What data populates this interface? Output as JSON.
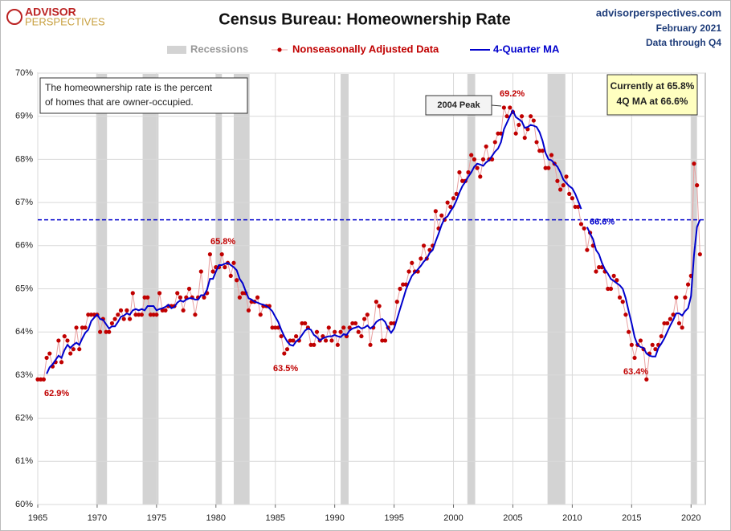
{
  "chart_data": {
    "type": "line",
    "title": "Census Bureau: Homeownership Rate",
    "logo": [
      "ADVISOR",
      "PERSPECTIVES"
    ],
    "header_right": [
      "advisorperspectives.com",
      "February 2021",
      "Data through Q4"
    ],
    "note": [
      "The homeownership rate is the percent",
      "of homes that are owner-occupied."
    ],
    "current_box": [
      "Currently at 65.8%",
      "4Q MA at 66.6%"
    ],
    "peak_label": "2004 Peak",
    "annotations": [
      "62.9%",
      "65.8%",
      "63.5%",
      "69.2%",
      "63.4%"
    ],
    "reference_line": {
      "value": 66.6,
      "label": "66.6%",
      "color": "#0000cc"
    },
    "recessions": {
      "name": "Recessions",
      "color": "#d3d3d3",
      "periods": [
        [
          1969.92,
          1970.83
        ],
        [
          1973.83,
          1975.17
        ],
        [
          1980.0,
          1980.5
        ],
        [
          1981.5,
          1982.83
        ],
        [
          1990.5,
          1991.17
        ],
        [
          2001.17,
          2001.83
        ],
        [
          2007.92,
          2009.42
        ],
        [
          2020.0,
          2020.5
        ]
      ]
    },
    "xlim": [
      1965,
      2021.2
    ],
    "xticks": [
      1965,
      1970,
      1975,
      1980,
      1985,
      1990,
      1995,
      2000,
      2005,
      2010,
      2015,
      2020
    ],
    "ylim": [
      60,
      70
    ],
    "yticks": [
      {
        "value": 60,
        "label": "60%"
      },
      {
        "value": 61,
        "label": "61%"
      },
      {
        "value": 62,
        "label": "62%"
      },
      {
        "value": 63,
        "label": "63%"
      },
      {
        "value": 64,
        "label": "64%"
      },
      {
        "value": 65,
        "label": "65%"
      },
      {
        "value": 66,
        "label": "66%"
      },
      {
        "value": 67,
        "label": "67%"
      },
      {
        "value": 68,
        "label": "68%"
      },
      {
        "value": 69,
        "label": "69%"
      },
      {
        "value": 70,
        "label": "70%"
      }
    ],
    "grid": true,
    "x": [
      1965,
      1965.25,
      1965.5,
      1965.75,
      1966,
      1966.25,
      1966.5,
      1966.75,
      1967,
      1967.25,
      1967.5,
      1967.75,
      1968,
      1968.25,
      1968.5,
      1968.75,
      1969,
      1969.25,
      1969.5,
      1969.75,
      1970,
      1970.25,
      1970.5,
      1970.75,
      1971,
      1971.25,
      1971.5,
      1971.75,
      1972,
      1972.25,
      1972.5,
      1972.75,
      1973,
      1973.25,
      1973.5,
      1973.75,
      1974,
      1974.25,
      1974.5,
      1974.75,
      1975,
      1975.25,
      1975.5,
      1975.75,
      1976,
      1976.25,
      1976.5,
      1976.75,
      1977,
      1977.25,
      1977.5,
      1977.75,
      1978,
      1978.25,
      1978.5,
      1978.75,
      1979,
      1979.25,
      1979.5,
      1979.75,
      1980,
      1980.25,
      1980.5,
      1980.75,
      1981,
      1981.25,
      1981.5,
      1981.75,
      1982,
      1982.25,
      1982.5,
      1982.75,
      1983,
      1983.25,
      1983.5,
      1983.75,
      1984,
      1984.25,
      1984.5,
      1984.75,
      1985,
      1985.25,
      1985.5,
      1985.75,
      1986,
      1986.25,
      1986.5,
      1986.75,
      1987,
      1987.25,
      1987.5,
      1987.75,
      1988,
      1988.25,
      1988.5,
      1988.75,
      1989,
      1989.25,
      1989.5,
      1989.75,
      1990,
      1990.25,
      1990.5,
      1990.75,
      1991,
      1991.25,
      1991.5,
      1991.75,
      1992,
      1992.25,
      1992.5,
      1992.75,
      1993,
      1993.25,
      1993.5,
      1993.75,
      1994,
      1994.25,
      1994.5,
      1994.75,
      1995,
      1995.25,
      1995.5,
      1995.75,
      1996,
      1996.25,
      1996.5,
      1996.75,
      1997,
      1997.25,
      1997.5,
      1997.75,
      1998,
      1998.25,
      1998.5,
      1998.75,
      1999,
      1999.25,
      1999.5,
      1999.75,
      2000,
      2000.25,
      2000.5,
      2000.75,
      2001,
      2001.25,
      2001.5,
      2001.75,
      2002,
      2002.25,
      2002.5,
      2002.75,
      2003,
      2003.25,
      2003.5,
      2003.75,
      2004,
      2004.25,
      2004.5,
      2004.75,
      2005,
      2005.25,
      2005.5,
      2005.75,
      2006,
      2006.25,
      2006.5,
      2006.75,
      2007,
      2007.25,
      2007.5,
      2007.75,
      2008,
      2008.25,
      2008.5,
      2008.75,
      2009,
      2009.25,
      2009.5,
      2009.75,
      2010,
      2010.25,
      2010.5,
      2010.75,
      2011,
      2011.25,
      2011.5,
      2011.75,
      2012,
      2012.25,
      2012.5,
      2012.75,
      2013,
      2013.25,
      2013.5,
      2013.75,
      2014,
      2014.25,
      2014.5,
      2014.75,
      2015,
      2015.25,
      2015.5,
      2015.75,
      2016,
      2016.25,
      2016.5,
      2016.75,
      2017,
      2017.25,
      2017.5,
      2017.75,
      2018,
      2018.25,
      2018.5,
      2018.75,
      2019,
      2019.25,
      2019.5,
      2019.75,
      2020,
      2020.25,
      2020.5,
      2020.75
    ],
    "series": [
      {
        "name": "Nonseasonally Adjusted Data",
        "color": "#c00000",
        "line_color": "#e8a0a0",
        "values": [
          62.9,
          62.9,
          62.9,
          63.4,
          63.5,
          63.2,
          63.3,
          63.8,
          63.3,
          63.9,
          63.8,
          63.5,
          63.6,
          64.1,
          63.6,
          64.1,
          64.1,
          64.4,
          64.4,
          64.4,
          64.4,
          64.0,
          64.3,
          64.0,
          64.0,
          64.2,
          64.3,
          64.4,
          64.5,
          64.3,
          64.5,
          64.3,
          64.9,
          64.4,
          64.4,
          64.4,
          64.8,
          64.8,
          64.4,
          64.4,
          64.4,
          64.9,
          64.5,
          64.5,
          64.6,
          64.6,
          64.6,
          64.9,
          64.8,
          64.5,
          64.8,
          65.0,
          64.8,
          64.4,
          64.8,
          65.4,
          64.8,
          64.9,
          65.8,
          65.4,
          65.5,
          65.5,
          65.8,
          65.5,
          65.6,
          65.3,
          65.6,
          65.2,
          64.8,
          64.9,
          64.9,
          64.5,
          64.7,
          64.7,
          64.8,
          64.4,
          64.6,
          64.6,
          64.6,
          64.1,
          64.1,
          64.1,
          63.9,
          63.5,
          63.6,
          63.8,
          63.8,
          63.9,
          63.8,
          64.2,
          64.2,
          64.1,
          63.7,
          63.7,
          64.0,
          63.8,
          63.9,
          63.8,
          64.1,
          63.8,
          64.0,
          63.7,
          64.0,
          64.1,
          63.9,
          64.1,
          64.2,
          64.2,
          64.0,
          63.9,
          64.3,
          64.4,
          63.7,
          64.1,
          64.7,
          64.6,
          63.8,
          63.8,
          64.1,
          64.2,
          64.2,
          64.7,
          65.0,
          65.1,
          65.1,
          65.4,
          65.6,
          65.4,
          65.4,
          65.7,
          66.0,
          65.7,
          65.9,
          66.0,
          66.8,
          66.4,
          66.7,
          66.6,
          67.0,
          66.9,
          67.1,
          67.2,
          67.7,
          67.5,
          67.5,
          67.7,
          68.1,
          68.0,
          67.8,
          67.6,
          68.0,
          68.3,
          68.0,
          68.0,
          68.4,
          68.6,
          68.6,
          69.2,
          69.0,
          69.2,
          69.1,
          68.6,
          68.8,
          69.0,
          68.5,
          68.7,
          69.0,
          68.9,
          68.4,
          68.2,
          68.2,
          67.8,
          67.8,
          68.1,
          67.9,
          67.5,
          67.3,
          67.4,
          67.6,
          67.2,
          67.1,
          66.9,
          66.9,
          66.5,
          66.4,
          65.9,
          66.3,
          66.0,
          65.4,
          65.5,
          65.5,
          65.4,
          65.0,
          65.0,
          65.3,
          65.2,
          64.8,
          64.7,
          64.4,
          64.0,
          63.7,
          63.4,
          63.7,
          63.8,
          63.6,
          62.9,
          63.5,
          63.7,
          63.6,
          63.7,
          63.9,
          64.2,
          64.2,
          64.3,
          64.4,
          64.8,
          64.2,
          64.1,
          64.8,
          65.1,
          65.3,
          67.9,
          67.4,
          65.8
        ]
      },
      {
        "name": "4-Quarter MA",
        "color": "#0000cc",
        "values": [
          null,
          null,
          null,
          63.03,
          63.18,
          63.25,
          63.35,
          63.45,
          63.4,
          63.58,
          63.7,
          63.63,
          63.7,
          63.75,
          63.7,
          63.85,
          63.98,
          64.05,
          64.25,
          64.33,
          64.4,
          64.3,
          64.28,
          64.18,
          64.08,
          64.13,
          64.13,
          64.23,
          64.35,
          64.38,
          64.43,
          64.4,
          64.5,
          64.53,
          64.5,
          64.53,
          64.5,
          64.6,
          64.6,
          64.6,
          64.5,
          64.53,
          64.55,
          64.58,
          64.63,
          64.55,
          64.58,
          64.68,
          64.73,
          64.7,
          64.75,
          64.78,
          64.78,
          64.75,
          64.75,
          64.85,
          64.85,
          64.98,
          65.23,
          65.23,
          65.4,
          65.55,
          65.55,
          65.58,
          65.6,
          65.55,
          65.5,
          65.43,
          65.23,
          65.13,
          64.95,
          64.78,
          64.75,
          64.7,
          64.68,
          64.65,
          64.63,
          64.6,
          64.55,
          64.48,
          64.35,
          64.23,
          64.05,
          63.9,
          63.78,
          63.7,
          63.68,
          63.78,
          63.83,
          63.93,
          64.03,
          64.08,
          64.05,
          63.93,
          63.88,
          63.8,
          63.85,
          63.88,
          63.9,
          63.9,
          63.93,
          63.9,
          63.88,
          63.95,
          63.93,
          64.03,
          64.08,
          64.1,
          64.13,
          64.08,
          64.1,
          64.15,
          64.08,
          64.13,
          64.23,
          64.28,
          64.3,
          64.23,
          64.08,
          63.98,
          64.08,
          64.3,
          64.53,
          64.75,
          64.98,
          65.15,
          65.3,
          65.38,
          65.45,
          65.53,
          65.63,
          65.7,
          65.83,
          65.9,
          66.1,
          66.28,
          66.48,
          66.63,
          66.68,
          66.8,
          66.9,
          67.05,
          67.23,
          67.38,
          67.48,
          67.6,
          67.7,
          67.83,
          67.9,
          67.88,
          67.85,
          67.93,
          67.98,
          68.08,
          68.18,
          68.25,
          68.4,
          68.7,
          68.85,
          69.0,
          69.13,
          68.98,
          68.93,
          68.88,
          68.73,
          68.75,
          68.8,
          68.78,
          68.75,
          68.63,
          68.43,
          68.15,
          68.0,
          67.98,
          67.9,
          67.83,
          67.7,
          67.53,
          67.45,
          67.38,
          67.33,
          67.2,
          67.03,
          66.85,
          null,
          66.43,
          66.28,
          66.15,
          65.9,
          65.8,
          65.6,
          65.45,
          65.35,
          65.23,
          65.18,
          65.13,
          65.08,
          65.0,
          64.78,
          64.48,
          64.2,
          63.88,
          63.7,
          63.65,
          63.63,
          63.5,
          63.45,
          63.43,
          63.43,
          63.63,
          63.73,
          63.85,
          64.0,
          64.15,
          64.28,
          64.43,
          64.43,
          64.38,
          64.48,
          64.55,
          64.83,
          65.78,
          66.43,
          66.6
        ]
      }
    ]
  }
}
